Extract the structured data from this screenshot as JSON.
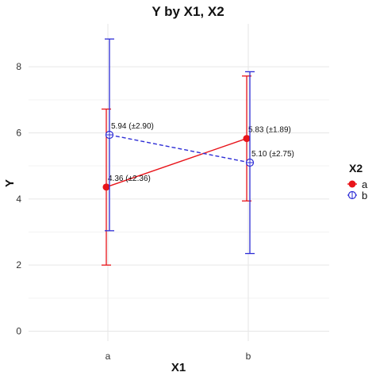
{
  "chart_data": {
    "type": "line",
    "title": "Y by X1, X2",
    "xlabel": "X1",
    "ylabel": "Y",
    "categories": [
      "a",
      "b"
    ],
    "ylim": [
      -0.3,
      9.3
    ],
    "yticks": [
      0,
      2,
      4,
      6,
      8
    ],
    "grid": true,
    "legend": {
      "title": "X2",
      "position": "right"
    },
    "series": [
      {
        "name": "a",
        "color": "#e8141a",
        "marker": "filled-circle",
        "line": "solid",
        "values": [
          4.36,
          5.83
        ],
        "errors": [
          2.36,
          1.89
        ],
        "labels": [
          "4.36 (±2.36)",
          "5.83 (±1.89)"
        ]
      },
      {
        "name": "b",
        "color": "#2d2dd6",
        "marker": "crossed-circle",
        "line": "dashed",
        "values": [
          5.94,
          5.1
        ],
        "errors": [
          2.9,
          2.75
        ],
        "labels": [
          "5.94 (±2.90)",
          "5.10 (±2.75)"
        ]
      }
    ]
  }
}
